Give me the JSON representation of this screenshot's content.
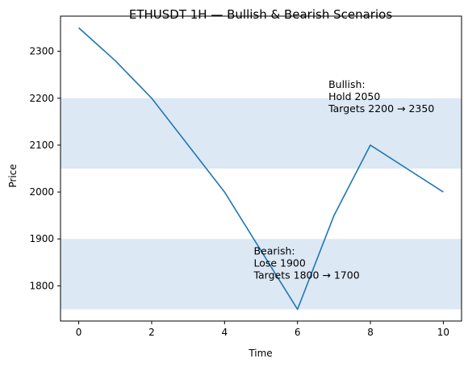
{
  "chart_data": {
    "type": "line",
    "title": "ETHUSDT 1H — Bullish & Bearish Scenarios",
    "xlabel": "Time",
    "ylabel": "Price",
    "xlim": [
      -0.5,
      10.5
    ],
    "ylim": [
      1725,
      2375
    ],
    "xticks": [
      0,
      2,
      4,
      6,
      8,
      10
    ],
    "yticks": [
      1800,
      1900,
      2000,
      2100,
      2200,
      2300
    ],
    "grid": false,
    "series": [
      {
        "x": [
          0,
          1,
          2,
          4,
          6,
          7,
          8,
          10
        ],
        "y": [
          2350,
          2280,
          2200,
          2000,
          1750,
          1950,
          2100,
          2000
        ],
        "color": "#1f77b4"
      }
    ],
    "bands": [
      {
        "y0": 2050,
        "y1": 2200,
        "color": "#dce8f4"
      },
      {
        "y0": 1750,
        "y1": 1900,
        "color": "#dce8f4"
      }
    ],
    "annotations": [
      {
        "x": 6.85,
        "y": 2222,
        "lines": [
          "Bullish:",
          "Hold 2050",
          "Targets 2200 → 2350"
        ]
      },
      {
        "x": 4.8,
        "y": 1867,
        "lines": [
          "Bearish:",
          "Lose 1900",
          "Targets 1800 → 1700"
        ]
      }
    ]
  }
}
